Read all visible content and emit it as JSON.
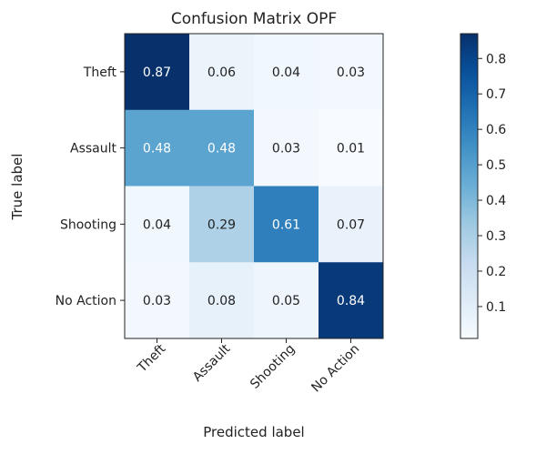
{
  "chart_data": {
    "type": "heatmap",
    "title": "Confusion Matrix OPF",
    "xlabel": "Predicted label",
    "ylabel": "True label",
    "x_categories": [
      "Theft",
      "Assault",
      "Shooting",
      "No Action"
    ],
    "y_categories": [
      "Theft",
      "Assault",
      "Shooting",
      "No Action"
    ],
    "values": [
      [
        0.87,
        0.06,
        0.04,
        0.03
      ],
      [
        0.48,
        0.48,
        0.03,
        0.01
      ],
      [
        0.04,
        0.29,
        0.61,
        0.07
      ],
      [
        0.03,
        0.08,
        0.05,
        0.84
      ]
    ],
    "value_labels": [
      [
        "0.87",
        "0.06",
        "0.04",
        "0.03"
      ],
      [
        "0.48",
        "0.48",
        "0.03",
        "0.01"
      ],
      [
        "0.04",
        "0.29",
        "0.61",
        "0.07"
      ],
      [
        "0.03",
        "0.08",
        "0.05",
        "0.84"
      ]
    ],
    "colormap": "Blues",
    "colorbar": {
      "range": [
        0.01,
        0.87
      ],
      "ticks": [
        0.1,
        0.2,
        0.3,
        0.4,
        0.5,
        0.6,
        0.7,
        0.8
      ],
      "tick_labels": [
        "0.1",
        "0.2",
        "0.3",
        "0.4",
        "0.5",
        "0.6",
        "0.7",
        "0.8"
      ]
    }
  }
}
